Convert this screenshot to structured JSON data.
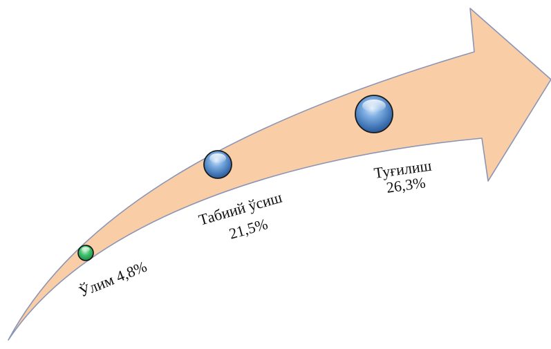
{
  "diagram": {
    "items": [
      {
        "label": "Ўлим 4,8%",
        "value_percent": 4.8
      },
      {
        "label_line1": "Табиий ўсиш",
        "label_line2": "21,5%",
        "value_percent": 21.5
      },
      {
        "label_line1": "Туғилиш",
        "label_line2": "26,3%",
        "value_percent": 26.3
      }
    ]
  },
  "colors": {
    "arrow_fill": "#F9CDA6",
    "arrow_stroke": "#8A95B5",
    "bubble_small": "#3CBF6A",
    "bubble_blue": "#4A86C8"
  }
}
